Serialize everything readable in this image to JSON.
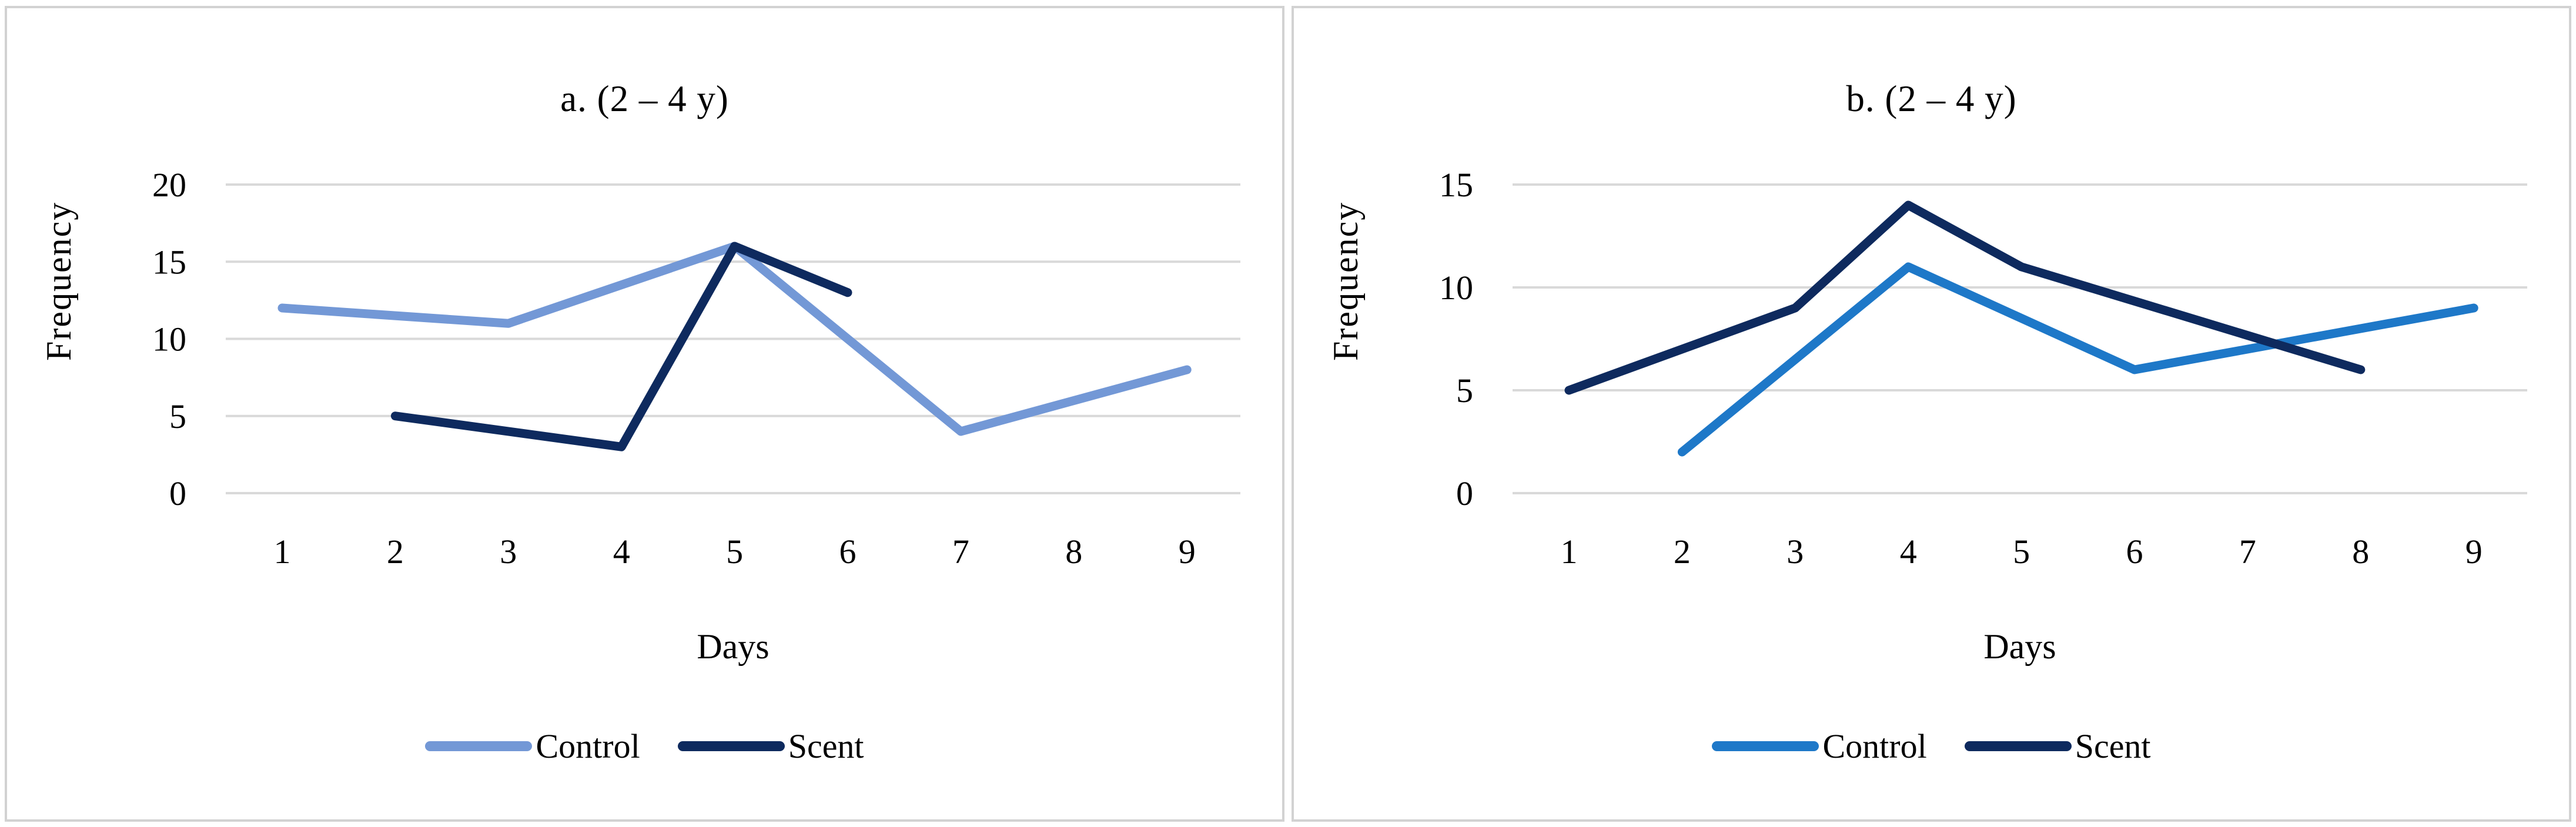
{
  "colors": {
    "background": "#ffffff",
    "panel_border": "#d2d2d2",
    "gridline": "#d9d9d9",
    "text": "#000000",
    "control_a": "#7398d6",
    "control_b": "#1e78c8",
    "scent": "#0e2a5e"
  },
  "chart_data": [
    {
      "type": "line",
      "title": "a. (2 – 4 y)",
      "xlabel": "Days",
      "ylabel": "Frequency",
      "categories": [
        1,
        2,
        3,
        4,
        5,
        6,
        7,
        8,
        9
      ],
      "ylim": [
        0,
        20
      ],
      "yticks": [
        0,
        5,
        10,
        15,
        20
      ],
      "grid": "horizontal",
      "legend_position": "bottom-center",
      "series": [
        {
          "name": "Control",
          "color": "#7398d6",
          "points": [
            [
              1,
              12
            ],
            [
              3,
              11
            ],
            [
              5,
              16
            ],
            [
              7,
              4
            ],
            [
              9,
              8
            ]
          ]
        },
        {
          "name": "Scent",
          "color": "#0e2a5e",
          "points": [
            [
              2,
              5
            ],
            [
              4,
              3
            ],
            [
              5,
              16
            ],
            [
              6,
              13
            ]
          ]
        }
      ]
    },
    {
      "type": "line",
      "title": "b. (2 – 4 y)",
      "xlabel": "Days",
      "ylabel": "Frequency",
      "categories": [
        1,
        2,
        3,
        4,
        5,
        6,
        7,
        8,
        9
      ],
      "ylim": [
        0,
        15
      ],
      "yticks": [
        0,
        5,
        10,
        15
      ],
      "grid": "horizontal",
      "legend_position": "bottom-center",
      "series": [
        {
          "name": "Control",
          "color": "#1e78c8",
          "points": [
            [
              2,
              2
            ],
            [
              4,
              11
            ],
            [
              6,
              6
            ],
            [
              9,
              9
            ]
          ]
        },
        {
          "name": "Scent",
          "color": "#0e2a5e",
          "points": [
            [
              1,
              5
            ],
            [
              3,
              9
            ],
            [
              4,
              14
            ],
            [
              5,
              11
            ],
            [
              8,
              6
            ]
          ]
        }
      ]
    }
  ]
}
